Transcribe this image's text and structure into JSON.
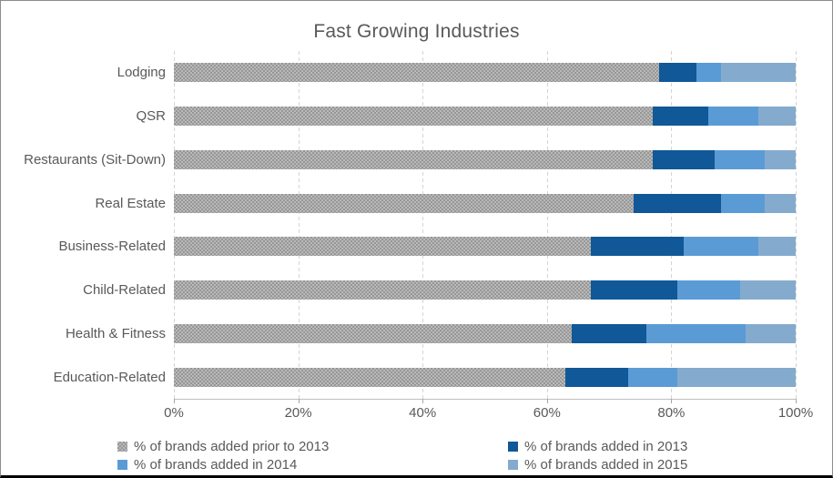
{
  "chart_data": {
    "type": "bar",
    "orientation": "horizontal",
    "stacked": true,
    "title": "Fast Growing Industries",
    "categories": [
      "Lodging",
      "QSR",
      "Restaurants (Sit-Down)",
      "Real Estate",
      "Business-Related",
      "Child-Related",
      "Health & Fitness",
      "Education-Related"
    ],
    "series": [
      {
        "name": "% of brands added prior to 2013",
        "color": "#ADADAD",
        "pattern": "dot-checker",
        "values": [
          78,
          77,
          77,
          74,
          67,
          67,
          64,
          63
        ]
      },
      {
        "name": "% of brands added in 2013",
        "color": "#105898",
        "pattern": "solid",
        "values": [
          6,
          9,
          10,
          14,
          15,
          14,
          12,
          10
        ]
      },
      {
        "name": "% of brands added in 2014",
        "color": "#5B9BD5",
        "pattern": "solid",
        "values": [
          4,
          8,
          8,
          7,
          12,
          10,
          16,
          8
        ]
      },
      {
        "name": "% of brands added in 2015",
        "color": "#84ABCE",
        "pattern": "solid",
        "values": [
          12,
          6,
          5,
          5,
          6,
          9,
          8,
          19
        ]
      }
    ],
    "x_axis": {
      "min": 0,
      "max": 100,
      "unit": "%",
      "tick_labels": [
        "0%",
        "20%",
        "40%",
        "60%",
        "80%",
        "100%"
      ],
      "grid": true
    },
    "legend": {
      "position": "bottom",
      "columns": 2,
      "entries": [
        "% of brands added prior to 2013",
        "% of brands added in 2013",
        "% of brands added in 2014",
        "% of brands added in 2015"
      ]
    }
  },
  "colors": {
    "text": "#595959",
    "gridline": "#D4D4D4",
    "axis_line": "#BFBFBF",
    "border": "#8C8C8C",
    "background": "#FFFFFF"
  }
}
